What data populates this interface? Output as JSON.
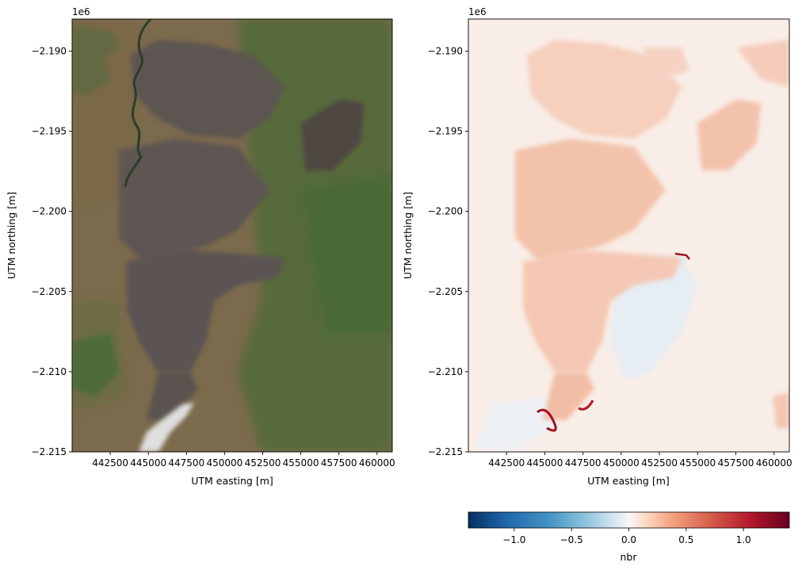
{
  "chart_data": [
    {
      "type": "heatmap",
      "image": "true-color satellite composite",
      "xlabel": "UTM easting [m]",
      "ylabel": "UTM northing [m]",
      "offset_text": "1e6",
      "xlim": [
        440000,
        461000
      ],
      "ylim": [
        -2215000,
        -2188000
      ],
      "x_ticks": [
        442500,
        445000,
        447500,
        450000,
        452500,
        455000,
        457500,
        460000
      ],
      "x_tick_labels": [
        "442500",
        "445000",
        "447500",
        "450000",
        "452500",
        "455000",
        "457500",
        "460000"
      ],
      "y_ticks": [
        -2190000,
        -2195000,
        -2200000,
        -2205000,
        -2210000,
        -2215000
      ],
      "y_tick_labels": [
        "−2.190",
        "−2.195",
        "−2.200",
        "−2.205",
        "−2.210",
        "−2.215"
      ],
      "colors": {
        "savanna": "#7d6a4a",
        "burn_scar": "#5e5552",
        "vegetation": "#4d6a35",
        "river": "#2a3f2a",
        "smoke": "#e8eaec"
      }
    },
    {
      "type": "heatmap",
      "variable": "nbr",
      "xlabel": "UTM easting [m]",
      "ylabel": "UTM northing [m]",
      "offset_text": "1e6",
      "xlim": [
        440000,
        461000
      ],
      "ylim": [
        -2215000,
        -2188000
      ],
      "x_ticks": [
        442500,
        445000,
        447500,
        450000,
        452500,
        455000,
        457500,
        460000
      ],
      "x_tick_labels": [
        "442500",
        "445000",
        "447500",
        "450000",
        "452500",
        "455000",
        "457500",
        "460000"
      ],
      "y_ticks": [
        -2190000,
        -2195000,
        -2200000,
        -2205000,
        -2210000,
        -2215000
      ],
      "y_tick_labels": [
        "−2.190",
        "−2.195",
        "−2.200",
        "−2.205",
        "−2.210",
        "−2.215"
      ],
      "colormap": "RdBu_r",
      "colorbar": {
        "label": "nbr",
        "range": [
          -1.4,
          1.4
        ],
        "ticks": [
          -1.0,
          -0.5,
          0.0,
          0.5,
          1.0
        ],
        "tick_labels": [
          "−1.0",
          "−0.5",
          "0.0",
          "0.5",
          "1.0"
        ],
        "orientation": "horizontal"
      },
      "colors": {
        "background": "#f8ece6",
        "burned": "#f3c4ae",
        "negative": "#e8eef4",
        "strong": "#a01020"
      }
    }
  ]
}
